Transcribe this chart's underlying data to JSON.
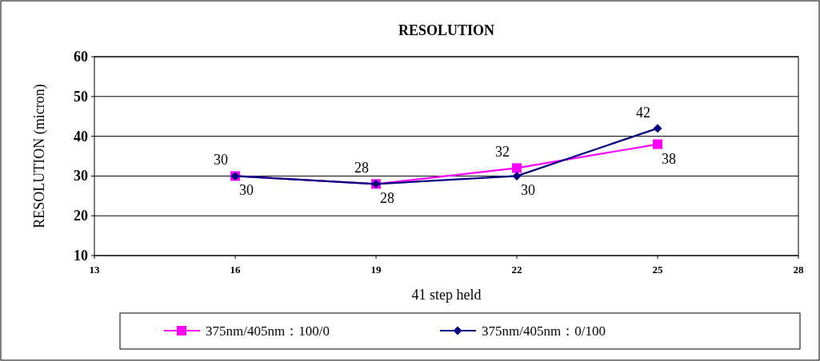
{
  "chart_data": {
    "type": "line",
    "title": "RESOLUTION",
    "xlabel": "41 step held",
    "ylabel": "RESOLUTION (micron)",
    "x": [
      16,
      19,
      22,
      25
    ],
    "xlim": [
      13,
      28
    ],
    "xticks": [
      13,
      16,
      19,
      22,
      25,
      28
    ],
    "ylim": [
      10,
      60
    ],
    "yticks": [
      10,
      20,
      30,
      40,
      50,
      60
    ],
    "grid": "y",
    "legend": "bottom",
    "data_labels": true,
    "line_style": "solid",
    "series": [
      {
        "name": "375nm/405nm：100/0",
        "color": "#ff00ff",
        "marker": "square",
        "values": [
          30,
          28,
          32,
          38
        ]
      },
      {
        "name": "375nm/405nm：0/100",
        "color": "#000080",
        "marker": "diamond",
        "values": [
          30,
          28,
          30,
          42
        ]
      }
    ]
  }
}
